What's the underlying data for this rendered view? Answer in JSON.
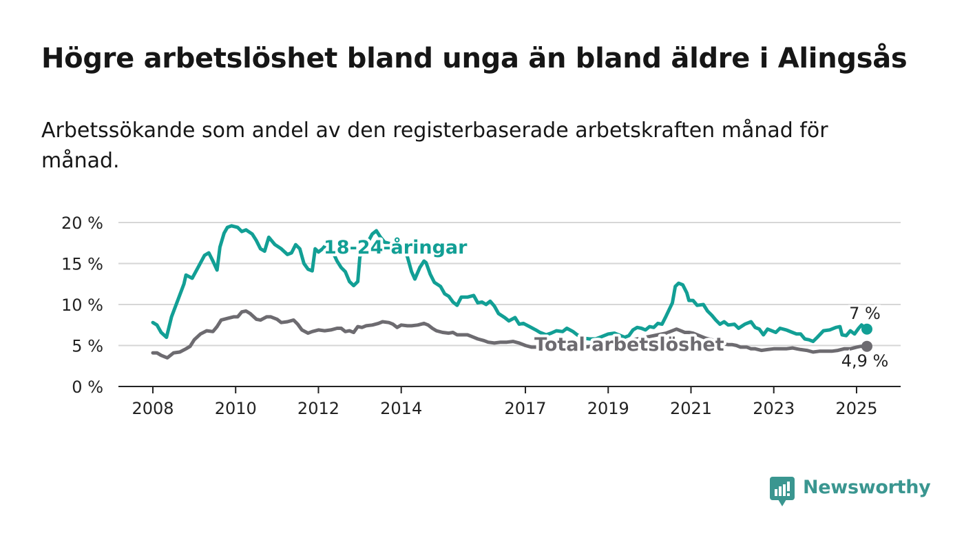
{
  "title": "Högre arbetslöshet bland unga än bland äldre i Alingsås",
  "subtitle": "Arbetssökande som andel av den registerbaserade arbetskraften månad för månad.",
  "logo": {
    "text": "Newsworthy",
    "icon": "newsworthy-bars-icon"
  },
  "colors": {
    "youth": "#129f95",
    "total": "#6d6b70",
    "grid": "#d6d6d6",
    "axis": "#222222"
  },
  "chart_data": {
    "type": "line",
    "x_unit": "year",
    "xlim": [
      2008,
      2025.3
    ],
    "ylim": [
      0,
      20
    ],
    "yticks": [
      0,
      5,
      10,
      15,
      20
    ],
    "ytick_labels": [
      "0 %",
      "5 %",
      "10 %",
      "15 %",
      "20 %"
    ],
    "xticks": [
      2008,
      2010,
      2012,
      2014,
      2017,
      2019,
      2021,
      2023,
      2025
    ],
    "xtick_labels": [
      "2008",
      "2010",
      "2012",
      "2014",
      "2017",
      "2019",
      "2021",
      "2023",
      "2025"
    ],
    "grid": true,
    "series": [
      {
        "name": "18-24-åringar",
        "end_label": "7 %",
        "points": [
          [
            2008.0,
            7.8
          ],
          [
            2008.1,
            7.5
          ],
          [
            2008.2,
            6.6
          ],
          [
            2008.33,
            6.0
          ],
          [
            2008.45,
            8.5
          ],
          [
            2008.6,
            10.5
          ],
          [
            2008.75,
            12.5
          ],
          [
            2008.8,
            13.6
          ],
          [
            2008.95,
            13.2
          ],
          [
            2009.1,
            14.6
          ],
          [
            2009.25,
            16.0
          ],
          [
            2009.35,
            16.3
          ],
          [
            2009.45,
            15.3
          ],
          [
            2009.55,
            14.2
          ],
          [
            2009.62,
            17.0
          ],
          [
            2009.72,
            18.7
          ],
          [
            2009.8,
            19.4
          ],
          [
            2009.9,
            19.6
          ],
          [
            2010.05,
            19.4
          ],
          [
            2010.15,
            18.9
          ],
          [
            2010.25,
            19.1
          ],
          [
            2010.4,
            18.6
          ],
          [
            2010.5,
            17.8
          ],
          [
            2010.6,
            16.8
          ],
          [
            2010.7,
            16.5
          ],
          [
            2010.8,
            18.2
          ],
          [
            2010.95,
            17.3
          ],
          [
            2011.1,
            16.8
          ],
          [
            2011.25,
            16.1
          ],
          [
            2011.35,
            16.3
          ],
          [
            2011.45,
            17.3
          ],
          [
            2011.55,
            16.8
          ],
          [
            2011.65,
            15.0
          ],
          [
            2011.75,
            14.3
          ],
          [
            2011.85,
            14.1
          ],
          [
            2011.92,
            16.8
          ],
          [
            2012.0,
            16.4
          ],
          [
            2012.1,
            16.8
          ],
          [
            2012.2,
            17.4
          ],
          [
            2012.32,
            16.7
          ],
          [
            2012.45,
            15.3
          ],
          [
            2012.55,
            14.5
          ],
          [
            2012.65,
            14.0
          ],
          [
            2012.75,
            12.8
          ],
          [
            2012.85,
            12.3
          ],
          [
            2012.95,
            12.8
          ],
          [
            2013.0,
            15.8
          ],
          [
            2013.15,
            17.2
          ],
          [
            2013.3,
            18.6
          ],
          [
            2013.4,
            19.0
          ],
          [
            2013.5,
            18.2
          ],
          [
            2013.6,
            17.6
          ],
          [
            2014.05,
            17.0
          ],
          [
            2014.15,
            15.8
          ],
          [
            2014.25,
            14.0
          ],
          [
            2014.33,
            13.1
          ],
          [
            2014.45,
            14.5
          ],
          [
            2014.55,
            15.3
          ],
          [
            2014.6,
            15.1
          ],
          [
            2014.7,
            13.7
          ],
          [
            2014.8,
            12.7
          ],
          [
            2014.95,
            12.2
          ],
          [
            2015.05,
            11.3
          ],
          [
            2015.15,
            11.0
          ],
          [
            2015.25,
            10.3
          ],
          [
            2015.35,
            9.9
          ],
          [
            2015.45,
            10.9
          ],
          [
            2015.6,
            10.9
          ],
          [
            2015.75,
            11.1
          ],
          [
            2015.85,
            10.2
          ],
          [
            2015.95,
            10.3
          ],
          [
            2016.05,
            10.0
          ],
          [
            2016.15,
            10.4
          ],
          [
            2016.25,
            9.8
          ],
          [
            2016.35,
            8.9
          ],
          [
            2016.5,
            8.4
          ],
          [
            2016.6,
            8.0
          ],
          [
            2016.75,
            8.4
          ],
          [
            2016.85,
            7.6
          ],
          [
            2016.95,
            7.7
          ],
          [
            2017.1,
            7.3
          ],
          [
            2017.25,
            6.9
          ],
          [
            2017.35,
            6.6
          ],
          [
            2017.5,
            6.3
          ],
          [
            2017.62,
            6.5
          ],
          [
            2017.75,
            6.8
          ],
          [
            2017.9,
            6.7
          ],
          [
            2018.0,
            7.1
          ],
          [
            2018.15,
            6.7
          ],
          [
            2018.25,
            6.3
          ],
          [
            2018.4,
            5.9
          ],
          [
            2018.55,
            5.8
          ],
          [
            2018.7,
            5.8
          ],
          [
            2018.85,
            6.1
          ],
          [
            2019.0,
            6.4
          ],
          [
            2019.15,
            6.5
          ],
          [
            2019.3,
            6.2
          ],
          [
            2019.4,
            6.0
          ],
          [
            2019.5,
            6.2
          ],
          [
            2019.6,
            6.9
          ],
          [
            2019.7,
            7.2
          ],
          [
            2019.8,
            7.1
          ],
          [
            2019.9,
            6.9
          ],
          [
            2020.0,
            7.3
          ],
          [
            2020.1,
            7.2
          ],
          [
            2020.2,
            7.7
          ],
          [
            2020.3,
            7.6
          ],
          [
            2020.4,
            8.6
          ],
          [
            2020.55,
            10.2
          ],
          [
            2020.62,
            12.2
          ],
          [
            2020.7,
            12.6
          ],
          [
            2020.8,
            12.4
          ],
          [
            2020.9,
            11.4
          ],
          [
            2020.95,
            10.5
          ],
          [
            2021.05,
            10.5
          ],
          [
            2021.15,
            9.9
          ],
          [
            2021.3,
            10.0
          ],
          [
            2021.4,
            9.2
          ],
          [
            2021.5,
            8.7
          ],
          [
            2021.6,
            8.1
          ],
          [
            2021.7,
            7.6
          ],
          [
            2021.8,
            7.9
          ],
          [
            2021.9,
            7.5
          ],
          [
            2022.05,
            7.6
          ],
          [
            2022.15,
            7.1
          ],
          [
            2022.3,
            7.6
          ],
          [
            2022.45,
            7.9
          ],
          [
            2022.55,
            7.2
          ],
          [
            2022.65,
            7.0
          ],
          [
            2022.75,
            6.3
          ],
          [
            2022.85,
            7.0
          ],
          [
            2022.95,
            6.8
          ],
          [
            2023.05,
            6.6
          ],
          [
            2023.15,
            7.1
          ],
          [
            2023.3,
            6.9
          ],
          [
            2023.45,
            6.6
          ],
          [
            2023.55,
            6.4
          ],
          [
            2023.65,
            6.4
          ],
          [
            2023.75,
            5.8
          ],
          [
            2023.85,
            5.7
          ],
          [
            2023.95,
            5.5
          ],
          [
            2024.05,
            6.0
          ],
          [
            2024.2,
            6.8
          ],
          [
            2024.35,
            6.9
          ],
          [
            2024.5,
            7.2
          ],
          [
            2024.6,
            7.3
          ],
          [
            2024.65,
            6.3
          ],
          [
            2024.75,
            6.2
          ],
          [
            2024.85,
            6.8
          ],
          [
            2024.95,
            6.4
          ],
          [
            2025.05,
            7.1
          ],
          [
            2025.12,
            7.5
          ],
          [
            2025.25,
            7.0
          ]
        ]
      },
      {
        "name": "Total arbetslöshet",
        "end_label": "4,9 %",
        "points": [
          [
            2008.0,
            4.1
          ],
          [
            2008.1,
            4.1
          ],
          [
            2008.2,
            3.8
          ],
          [
            2008.35,
            3.5
          ],
          [
            2008.5,
            4.1
          ],
          [
            2008.65,
            4.2
          ],
          [
            2008.8,
            4.6
          ],
          [
            2008.9,
            4.9
          ],
          [
            2009.0,
            5.7
          ],
          [
            2009.15,
            6.4
          ],
          [
            2009.3,
            6.8
          ],
          [
            2009.45,
            6.7
          ],
          [
            2009.55,
            7.3
          ],
          [
            2009.65,
            8.1
          ],
          [
            2009.8,
            8.3
          ],
          [
            2009.95,
            8.5
          ],
          [
            2010.05,
            8.5
          ],
          [
            2010.15,
            9.1
          ],
          [
            2010.25,
            9.2
          ],
          [
            2010.35,
            8.9
          ],
          [
            2010.5,
            8.2
          ],
          [
            2010.6,
            8.1
          ],
          [
            2010.75,
            8.5
          ],
          [
            2010.85,
            8.5
          ],
          [
            2011.0,
            8.2
          ],
          [
            2011.1,
            7.8
          ],
          [
            2011.25,
            7.9
          ],
          [
            2011.4,
            8.1
          ],
          [
            2011.5,
            7.6
          ],
          [
            2011.6,
            6.9
          ],
          [
            2011.75,
            6.5
          ],
          [
            2011.85,
            6.7
          ],
          [
            2012.0,
            6.9
          ],
          [
            2012.15,
            6.8
          ],
          [
            2012.3,
            6.9
          ],
          [
            2012.45,
            7.1
          ],
          [
            2012.55,
            7.1
          ],
          [
            2012.65,
            6.7
          ],
          [
            2012.75,
            6.8
          ],
          [
            2012.85,
            6.6
          ],
          [
            2012.95,
            7.3
          ],
          [
            2013.05,
            7.2
          ],
          [
            2013.15,
            7.4
          ],
          [
            2013.3,
            7.5
          ],
          [
            2013.45,
            7.7
          ],
          [
            2013.55,
            7.9
          ],
          [
            2013.7,
            7.8
          ],
          [
            2013.8,
            7.6
          ],
          [
            2013.9,
            7.2
          ],
          [
            2014.0,
            7.5
          ],
          [
            2014.15,
            7.4
          ],
          [
            2014.25,
            7.4
          ],
          [
            2014.4,
            7.5
          ],
          [
            2014.55,
            7.7
          ],
          [
            2014.65,
            7.5
          ],
          [
            2014.75,
            7.1
          ],
          [
            2014.85,
            6.8
          ],
          [
            2015.0,
            6.6
          ],
          [
            2015.15,
            6.5
          ],
          [
            2015.25,
            6.6
          ],
          [
            2015.35,
            6.3
          ],
          [
            2015.5,
            6.3
          ],
          [
            2015.6,
            6.3
          ],
          [
            2015.75,
            6.0
          ],
          [
            2015.85,
            5.8
          ],
          [
            2016.0,
            5.6
          ],
          [
            2016.1,
            5.4
          ],
          [
            2016.25,
            5.3
          ],
          [
            2016.4,
            5.4
          ],
          [
            2016.55,
            5.4
          ],
          [
            2016.7,
            5.5
          ],
          [
            2016.85,
            5.3
          ],
          [
            2017.0,
            5.0
          ],
          [
            2017.15,
            4.8
          ],
          [
            2017.3,
            4.8
          ],
          [
            2017.45,
            4.8
          ],
          [
            2017.6,
            5.0
          ],
          [
            2017.75,
            5.2
          ],
          [
            2017.85,
            5.1
          ],
          [
            2018.0,
            5.0
          ],
          [
            2018.2,
            4.9
          ],
          [
            2018.4,
            4.8
          ],
          [
            2018.6,
            4.9
          ],
          [
            2018.8,
            5.0
          ],
          [
            2019.0,
            5.1
          ],
          [
            2019.2,
            5.2
          ],
          [
            2019.4,
            5.4
          ],
          [
            2019.6,
            5.7
          ],
          [
            2019.8,
            5.9
          ],
          [
            2020.0,
            6.1
          ],
          [
            2020.2,
            6.3
          ],
          [
            2020.4,
            6.5
          ],
          [
            2020.55,
            6.8
          ],
          [
            2020.65,
            7.0
          ],
          [
            2020.75,
            6.8
          ],
          [
            2020.85,
            6.6
          ],
          [
            2020.95,
            6.6
          ],
          [
            2021.05,
            6.5
          ],
          [
            2021.2,
            6.2
          ],
          [
            2021.35,
            5.9
          ],
          [
            2021.5,
            5.7
          ],
          [
            2021.65,
            5.4
          ],
          [
            2021.8,
            5.2
          ],
          [
            2021.9,
            5.1
          ],
          [
            2022.0,
            5.1
          ],
          [
            2022.1,
            5.0
          ],
          [
            2022.2,
            4.8
          ],
          [
            2022.35,
            4.8
          ],
          [
            2022.45,
            4.6
          ],
          [
            2022.55,
            4.6
          ],
          [
            2022.7,
            4.4
          ],
          [
            2022.85,
            4.5
          ],
          [
            2023.0,
            4.6
          ],
          [
            2023.15,
            4.6
          ],
          [
            2023.3,
            4.6
          ],
          [
            2023.45,
            4.7
          ],
          [
            2023.55,
            4.6
          ],
          [
            2023.65,
            4.5
          ],
          [
            2023.8,
            4.4
          ],
          [
            2023.95,
            4.2
          ],
          [
            2024.1,
            4.3
          ],
          [
            2024.25,
            4.3
          ],
          [
            2024.4,
            4.3
          ],
          [
            2024.55,
            4.4
          ],
          [
            2024.7,
            4.6
          ],
          [
            2024.85,
            4.6
          ],
          [
            2025.0,
            4.8
          ],
          [
            2025.1,
            4.9
          ],
          [
            2025.25,
            4.9
          ]
        ]
      }
    ]
  }
}
